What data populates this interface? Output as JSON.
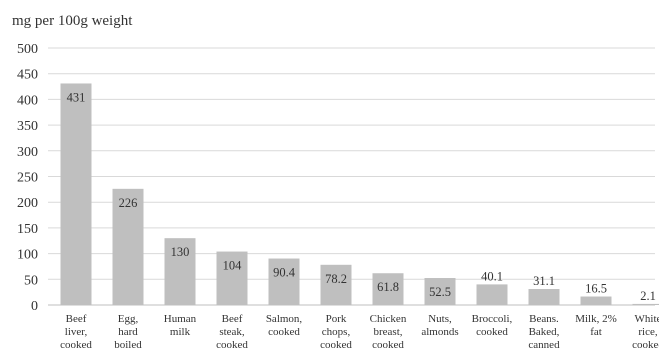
{
  "chart_data": {
    "type": "bar",
    "title": "",
    "ylabel": "mg per 100g weight",
    "xlabel": "",
    "ylim": [
      0,
      500
    ],
    "yticks": [
      0,
      50,
      100,
      150,
      200,
      250,
      300,
      350,
      400,
      450,
      500
    ],
    "grid": true,
    "bar_color": "#bfbfbf",
    "categories": [
      [
        "Beef",
        "liver,",
        "cooked"
      ],
      [
        "Egg,",
        "hard",
        "boiled"
      ],
      [
        "Human",
        "milk"
      ],
      [
        "Beef",
        "steak,",
        "cooked"
      ],
      [
        "Salmon,",
        "cooked"
      ],
      [
        "Pork",
        "chops,",
        "cooked"
      ],
      [
        "Chicken",
        "breast,",
        "cooked"
      ],
      [
        "Nuts,",
        "almonds"
      ],
      [
        "Broccoli,",
        "cooked"
      ],
      [
        "Beans.",
        "Baked,",
        "canned"
      ],
      [
        "Milk, 2%",
        "fat"
      ],
      [
        "White",
        "rice,",
        "cooked"
      ]
    ],
    "values": [
      431,
      226,
      130,
      104,
      90.4,
      78.2,
      61.8,
      52.5,
      40.1,
      31.1,
      16.5,
      2.1
    ],
    "data_labels": [
      "431",
      "226",
      "130",
      "104",
      "90.4",
      "78.2",
      "61.8",
      "52.5",
      "40.1",
      "31.1",
      "16.5",
      "2.1"
    ]
  }
}
